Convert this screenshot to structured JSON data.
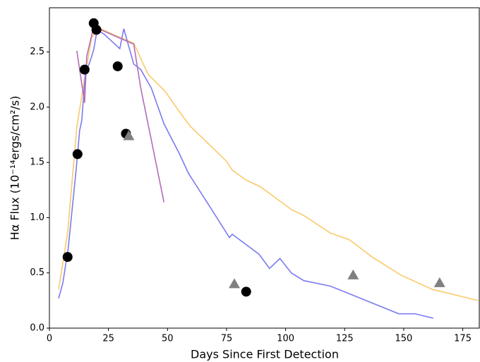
{
  "chart_data": {
    "type": "line",
    "xlabel": "Days Since First Detection",
    "ylabel": "Hα Flux (10⁻¹⁴ergs/cm²/s)",
    "xlim": [
      0,
      182
    ],
    "ylim": [
      0,
      2.9
    ],
    "xticks": [
      0,
      25,
      50,
      75,
      100,
      125,
      150,
      175
    ],
    "yticks": [
      {
        "value": 0,
        "label": "0.0"
      },
      {
        "value": 0.5,
        "label": "0.5"
      },
      {
        "value": 1,
        "label": "1.0"
      },
      {
        "value": 1.5,
        "label": "1.5"
      },
      {
        "value": 2,
        "label": "2.0"
      },
      {
        "value": 2.5,
        "label": "2.5"
      }
    ],
    "series": [
      {
        "style": "line",
        "color": "#f9c96a",
        "x": [
          3.9,
          7.7,
          11.6,
          14.9,
          17.9,
          20.8,
          26.8,
          35.7,
          41.7,
          49.1,
          55,
          59.5,
          75,
          77.4,
          83.3,
          89.3,
          97.6,
          102.7,
          107.7,
          119,
          127,
          136.9,
          148.8,
          162.2,
          181.5
        ],
        "values": [
          0.35,
          0.86,
          1.82,
          2.26,
          2.63,
          2.72,
          2.66,
          2.58,
          2.3,
          2.14,
          1.96,
          1.83,
          1.51,
          1.43,
          1.34,
          1.28,
          1.15,
          1.07,
          1.02,
          0.86,
          0.8,
          0.64,
          0.48,
          0.35,
          0.25
        ]
      },
      {
        "style": "line",
        "color": "#7b7bf0",
        "x": [
          3.9,
          5.7,
          8,
          11.3,
          12.8,
          13.7,
          15.2,
          17.3,
          18.75,
          20.2,
          23.2,
          29.8,
          31.5,
          35.7,
          38.7,
          43.2,
          48.5,
          55,
          58.9,
          68.5,
          76.2,
          77.4,
          88.7,
          93.2,
          97.6,
          102.4,
          107.7,
          119,
          147.9,
          154.8,
          162.5
        ],
        "values": [
          0.27,
          0.41,
          0.73,
          1.43,
          1.79,
          1.88,
          2.3,
          2.42,
          2.52,
          2.7,
          2.66,
          2.53,
          2.71,
          2.39,
          2.34,
          2.17,
          1.85,
          1.58,
          1.4,
          1.08,
          0.82,
          0.85,
          0.67,
          0.54,
          0.63,
          0.5,
          0.43,
          0.38,
          0.13,
          0.13,
          0.09
        ]
      },
      {
        "style": "line",
        "color": "#b36cb8",
        "x": [
          11.6,
          14.9,
          15.8,
          18.2,
          20.8,
          35.7,
          38.7,
          48.5
        ],
        "values": [
          2.51,
          2.04,
          2.46,
          2.68,
          2.71,
          2.57,
          2.17,
          1.14
        ]
      },
      {
        "style": "circle",
        "color": "#000000",
        "x": [
          7.7,
          11.9,
          14.9,
          18.75,
          19.9,
          28.9,
          32.4,
          83.3
        ],
        "values": [
          0.644,
          1.575,
          2.34,
          2.76,
          2.7,
          2.37,
          1.76,
          0.33
        ]
      },
      {
        "style": "triangle",
        "color": "#808080",
        "x": [
          33.6,
          78.3,
          128.6,
          165.2
        ],
        "values": [
          1.74,
          0.4,
          0.48,
          0.41
        ]
      }
    ]
  }
}
